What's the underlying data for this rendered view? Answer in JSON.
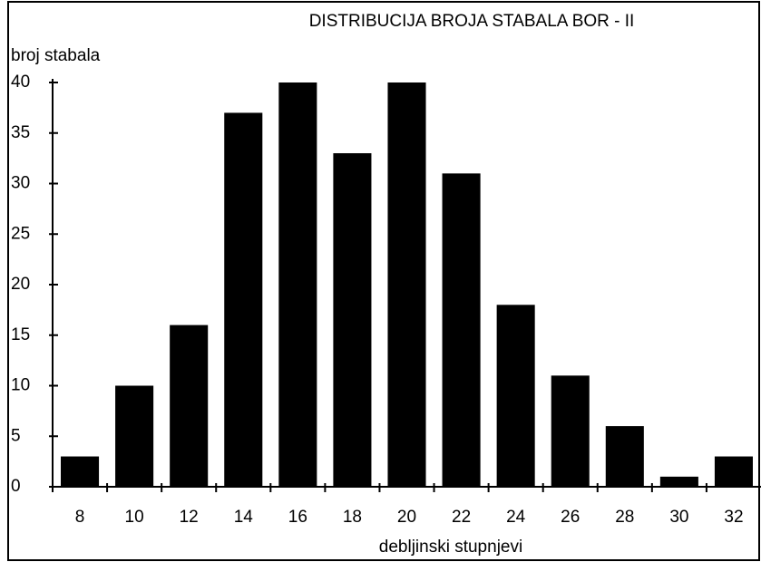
{
  "chart_data": {
    "type": "bar",
    "title": "DISTRIBUCIJA BROJA STABALA BOR - II",
    "y_label": "broj stabala",
    "x_label": "debljinski stupnjevi",
    "categories": [
      "8",
      "10",
      "12",
      "14",
      "16",
      "18",
      "20",
      "22",
      "24",
      "26",
      "28",
      "30",
      "32"
    ],
    "values": [
      3,
      10,
      16,
      37,
      40,
      33,
      40,
      31,
      18,
      11,
      6,
      1,
      3
    ],
    "color": "#000000",
    "ylim": [
      0,
      40
    ],
    "yticks": [
      0,
      5,
      10,
      15,
      20,
      25,
      30,
      35,
      40
    ],
    "grid": false
  }
}
